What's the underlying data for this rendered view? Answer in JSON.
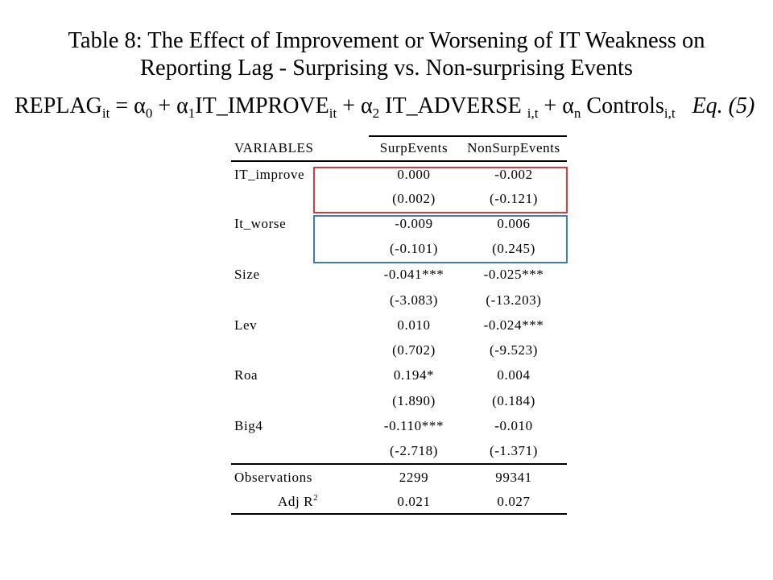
{
  "title": {
    "line1": "Table 8: The Effect of Improvement  or Worsening of IT Weakness on",
    "line2": "Reporting Lag - Surprising vs. Non-surprising Events"
  },
  "equation": {
    "lhs": "REPLAG",
    "lhs_sub": "it",
    "eq_sign": " = ",
    "a0": "α",
    "a0_sub": "0",
    "plus1": " + ",
    "a1": "α",
    "a1_sub": "1",
    "term1": "IT_IMPROVE",
    "term1_sub": "it",
    "plus2": " + ",
    "a2": "α",
    "a2_sub": "2",
    "term2": " IT_ADVERSE ",
    "term2_sub": "i,t",
    "plus3": " +  ",
    "an": "α",
    "an_sub": "n",
    "term3": " Controls",
    "term3_sub": "i,t",
    "label": "Eq. (5)"
  },
  "table": {
    "headers": [
      "VARIABLES",
      "SurpEvents",
      "NonSurpEvents"
    ],
    "rows": [
      {
        "label": "IT_improve",
        "surp": "0.000",
        "nonsurp": "-0.002"
      },
      {
        "label": "",
        "surp": "(0.002)",
        "nonsurp": "(-0.121)"
      },
      {
        "label": "It_worse",
        "surp": "-0.009",
        "nonsurp": "0.006"
      },
      {
        "label": "",
        "surp": "(-0.101)",
        "nonsurp": "(0.245)"
      },
      {
        "label": "Size",
        "surp": "-0.041***",
        "nonsurp": "-0.025***"
      },
      {
        "label": "",
        "surp": "(-3.083)",
        "nonsurp": "(-13.203)"
      },
      {
        "label": "Lev",
        "surp": "0.010",
        "nonsurp": "-0.024***"
      },
      {
        "label": "",
        "surp": "(0.702)",
        "nonsurp": "(-9.523)"
      },
      {
        "label": "Roa",
        "surp": "0.194*",
        "nonsurp": "0.004"
      },
      {
        "label": "",
        "surp": "(1.890)",
        "nonsurp": "(0.184)"
      },
      {
        "label": "Big4",
        "surp": "-0.110***",
        "nonsurp": "-0.010"
      },
      {
        "label": "",
        "surp": "(-2.718)",
        "nonsurp": "(-1.371)"
      }
    ],
    "observations": {
      "label": "Observations",
      "surp": "2299",
      "nonsurp": "99341"
    },
    "adjr2": {
      "label": "Adj R",
      "label_sup": "2",
      "surp": "0.021",
      "nonsurp": "0.027"
    }
  },
  "highlight_colors": {
    "it_improve_box": "#d83a3a",
    "it_worse_box": "#3b7ec0"
  }
}
